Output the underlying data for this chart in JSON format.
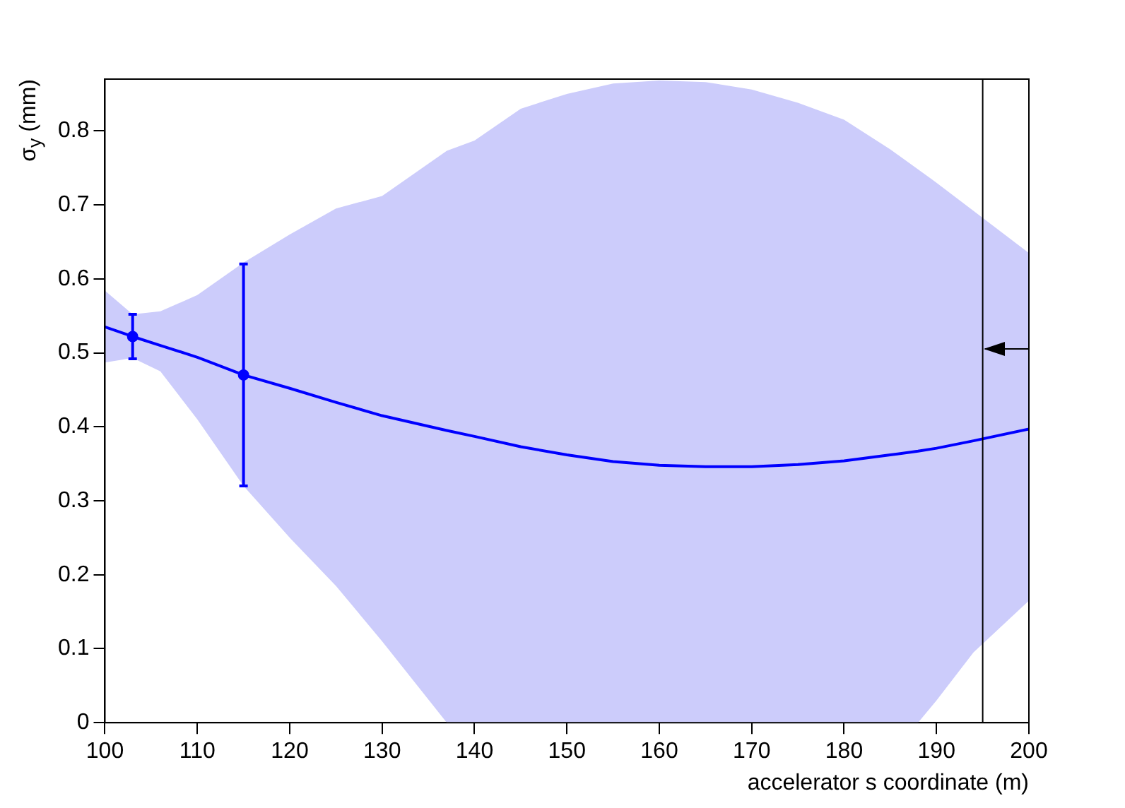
{
  "chart_data": {
    "type": "line",
    "xlabel": "accelerator s coordinate (m)",
    "ylabel": "σ$_{y}$ (mm)",
    "xlim": [
      100,
      200
    ],
    "xticks": [
      100,
      110,
      120,
      130,
      140,
      150,
      160,
      170,
      180,
      190,
      200
    ],
    "ylim": [
      0,
      0.87
    ],
    "yticks": [
      0,
      0.1,
      0.2,
      0.3,
      0.4,
      0.5,
      0.6,
      0.7,
      0.8
    ],
    "grid": false,
    "legend": false,
    "series": [
      {
        "type": "line",
        "color": "#0000ff",
        "marker": "none",
        "x": [
          100,
          103,
          106,
          110,
          115,
          120,
          125,
          130,
          137,
          140,
          145,
          150,
          155,
          160,
          165,
          170,
          175,
          180,
          185,
          188,
          190,
          194,
          200
        ],
        "values": [
          0.535,
          0.522,
          0.51,
          0.494,
          0.47,
          0.452,
          0.433,
          0.415,
          0.395,
          0.387,
          0.373,
          0.362,
          0.353,
          0.348,
          0.346,
          0.346,
          0.349,
          0.354,
          0.362,
          0.367,
          0.371,
          0.381,
          0.397
        ],
        "lower": [
          0.487,
          0.493,
          0.475,
          0.41,
          0.32,
          0.25,
          0.185,
          0.11,
          0,
          0,
          0,
          0,
          0,
          0,
          0,
          0,
          0,
          0,
          0,
          0,
          0.03,
          0.095,
          0.165
        ],
        "upper": [
          0.584,
          0.552,
          0.556,
          0.578,
          0.622,
          0.66,
          0.695,
          0.712,
          0.773,
          0.787,
          0.83,
          0.85,
          0.864,
          0.868,
          0.866,
          0.856,
          0.838,
          0.815,
          0.775,
          0.748,
          0.73,
          0.692,
          0.635
        ]
      },
      {
        "type": "scatter",
        "color": "#0000ff",
        "marker": "circle",
        "x": [
          103,
          115
        ],
        "values": [
          0.522,
          0.47
        ],
        "errors": [
          [
            0.492,
            0.552
          ],
          [
            0.32,
            0.62
          ]
        ]
      }
    ],
    "ref_lines": [
      {
        "axis": "x",
        "value": 195,
        "color": "#000000"
      }
    ]
  }
}
